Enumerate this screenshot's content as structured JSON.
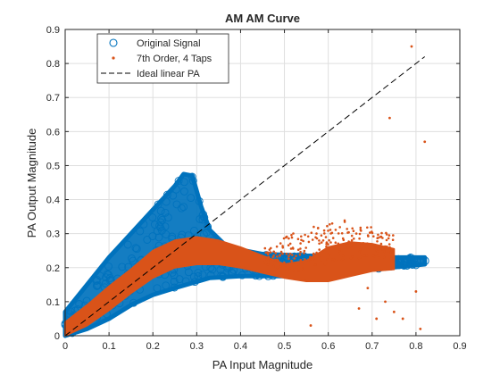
{
  "chart_data": {
    "type": "scatter",
    "title": "AM AM Curve",
    "xlabel": "PA Input Magnitude",
    "ylabel": "PA Output Magnitude",
    "xlim": [
      0,
      0.9
    ],
    "ylim": [
      0,
      0.9
    ],
    "xticks": [
      "0",
      "0.1",
      "0.2",
      "0.3",
      "0.4",
      "0.5",
      "0.6",
      "0.7",
      "0.8",
      "0.9"
    ],
    "yticks": [
      "0",
      "0.1",
      "0.2",
      "0.3",
      "0.4",
      "0.5",
      "0.6",
      "0.7",
      "0.8",
      "0.9"
    ],
    "grid": true,
    "legend_position": "top-left",
    "series": [
      {
        "name": "Original Signal",
        "marker": "open-circle",
        "color": "#0072BD",
        "upper_envelope": [
          [
            0,
            0.07
          ],
          [
            0.05,
            0.15
          ],
          [
            0.1,
            0.23
          ],
          [
            0.15,
            0.3
          ],
          [
            0.2,
            0.37
          ],
          [
            0.25,
            0.44
          ],
          [
            0.27,
            0.475
          ],
          [
            0.29,
            0.47
          ],
          [
            0.31,
            0.38
          ],
          [
            0.33,
            0.31
          ],
          [
            0.37,
            0.26
          ],
          [
            0.45,
            0.24
          ],
          [
            0.55,
            0.235
          ],
          [
            0.65,
            0.235
          ],
          [
            0.75,
            0.23
          ],
          [
            0.82,
            0.23
          ]
        ],
        "lower_envelope": [
          [
            0.82,
            0.21
          ],
          [
            0.7,
            0.195
          ],
          [
            0.6,
            0.185
          ],
          [
            0.5,
            0.175
          ],
          [
            0.4,
            0.175
          ],
          [
            0.33,
            0.17
          ],
          [
            0.25,
            0.14
          ],
          [
            0.2,
            0.12
          ],
          [
            0.15,
            0.09
          ],
          [
            0.1,
            0.05
          ],
          [
            0.05,
            0.02
          ],
          [
            0,
            0
          ]
        ],
        "outer_points": [
          [
            0.74,
            0.22
          ],
          [
            0.76,
            0.215
          ],
          [
            0.78,
            0.22
          ],
          [
            0.8,
            0.22
          ],
          [
            0.82,
            0.22
          ],
          [
            0.72,
            0.21
          ],
          [
            0.7,
            0.22
          ],
          [
            0.68,
            0.21
          ]
        ]
      },
      {
        "name": "7th Order, 4 Taps",
        "marker": "dot",
        "color": "#D95319",
        "curve": [
          [
            0,
            0.02
          ],
          [
            0.05,
            0.06
          ],
          [
            0.1,
            0.11
          ],
          [
            0.15,
            0.16
          ],
          [
            0.2,
            0.21
          ],
          [
            0.25,
            0.24
          ],
          [
            0.3,
            0.25
          ],
          [
            0.35,
            0.245
          ],
          [
            0.4,
            0.23
          ],
          [
            0.45,
            0.21
          ],
          [
            0.5,
            0.19
          ],
          [
            0.55,
            0.19
          ],
          [
            0.6,
            0.21
          ],
          [
            0.65,
            0.225
          ],
          [
            0.7,
            0.23
          ],
          [
            0.75,
            0.225
          ]
        ],
        "half_band": [
          0.02,
          0.03,
          0.035,
          0.035,
          0.04,
          0.04,
          0.04,
          0.035,
          0.03,
          0.025,
          0.02,
          0.03,
          0.05,
          0.05,
          0.04,
          0.03
        ],
        "scatter_region": {
          "x": [
            0.45,
            0.75
          ],
          "y": [
            0.2,
            0.35
          ]
        },
        "outliers": [
          [
            0.79,
            0.85
          ],
          [
            0.74,
            0.64
          ],
          [
            0.82,
            0.57
          ],
          [
            0.71,
            0.05
          ],
          [
            0.75,
            0.07
          ],
          [
            0.73,
            0.1
          ],
          [
            0.81,
            0.02
          ],
          [
            0.77,
            0.05
          ],
          [
            0.69,
            0.14
          ],
          [
            0.56,
            0.03
          ],
          [
            0.8,
            0.13
          ],
          [
            0.67,
            0.08
          ]
        ]
      },
      {
        "name": "Ideal linear PA",
        "style": "dashed",
        "color": "#000000",
        "x": [
          0,
          0.82
        ],
        "y": [
          0,
          0.82
        ]
      }
    ]
  }
}
